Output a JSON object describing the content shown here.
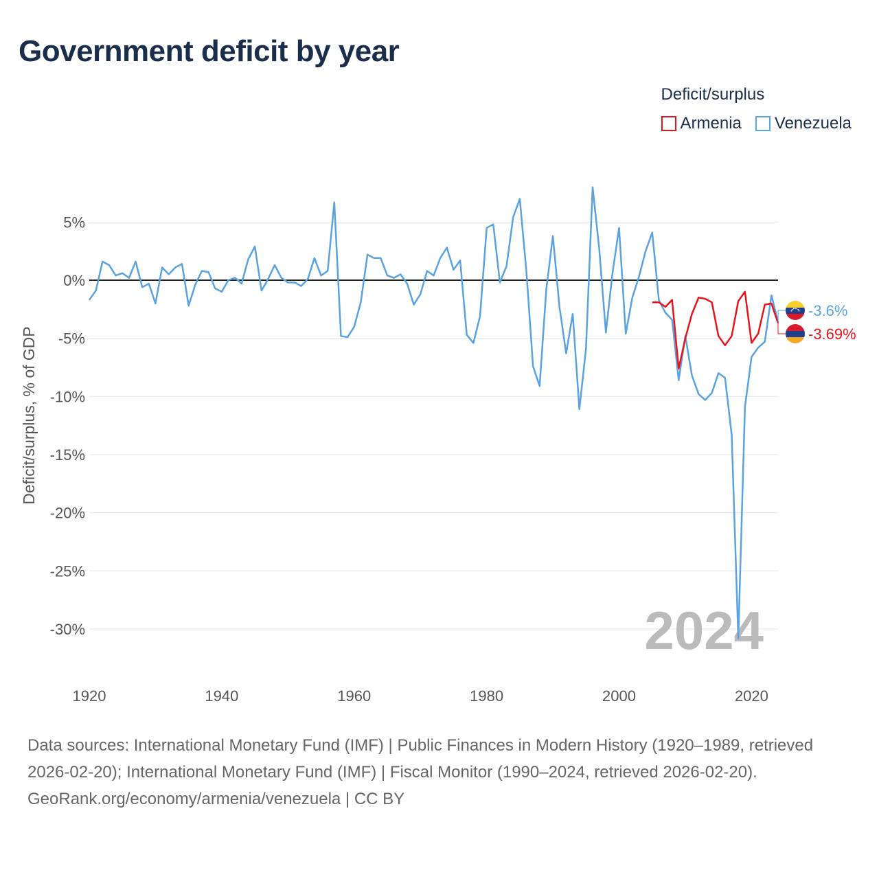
{
  "page": {
    "title": "Government deficit by year",
    "sources": "Data sources: International Monetary Fund (IMF) | Public Finances in Modern History (1920–1989, retrieved 2026-02-20); International Monetary Fund (IMF) | Fiscal Monitor (1990–2024, retrieved 2026-02-20).",
    "credit": "GeoRank.org/economy/armenia/venezuela | CC BY"
  },
  "legend": {
    "title": "Deficit/surplus",
    "items": [
      {
        "label": "Armenia",
        "color": "#e8141c"
      },
      {
        "label": "Venezuela",
        "color": "#5aa3e0"
      }
    ]
  },
  "chart_data": {
    "type": "line",
    "title": "Government deficit by year",
    "xlabel": "",
    "ylabel": "Deficit/surplus, % of GDP",
    "xlim": [
      1920,
      2024
    ],
    "ylim": [
      -33,
      10
    ],
    "x_ticks": [
      1920,
      1940,
      1960,
      1980,
      2000,
      2020
    ],
    "y_ticks": [
      {
        "value": 5,
        "label": "5%"
      },
      {
        "value": 0,
        "label": "0%"
      },
      {
        "value": -5,
        "label": "-5%"
      },
      {
        "value": -10,
        "label": "-10%"
      },
      {
        "value": -15,
        "label": "-15%"
      },
      {
        "value": -20,
        "label": "-20%"
      },
      {
        "value": -25,
        "label": "-25%"
      },
      {
        "value": -30,
        "label": "-30%"
      }
    ],
    "zero_line": true,
    "grid": true,
    "current_year": "2024",
    "series": [
      {
        "name": "Venezuela",
        "color": "#5aa3e0",
        "end_label": "-3.6%",
        "flag": "venezuela-flag",
        "x": [
          1920,
          1921,
          1922,
          1923,
          1924,
          1925,
          1926,
          1927,
          1928,
          1929,
          1930,
          1931,
          1932,
          1933,
          1934,
          1935,
          1936,
          1937,
          1938,
          1939,
          1940,
          1941,
          1942,
          1943,
          1944,
          1945,
          1946,
          1947,
          1948,
          1949,
          1950,
          1951,
          1952,
          1953,
          1954,
          1955,
          1956,
          1957,
          1958,
          1959,
          1960,
          1961,
          1962,
          1963,
          1964,
          1965,
          1966,
          1967,
          1968,
          1969,
          1970,
          1971,
          1972,
          1973,
          1974,
          1975,
          1976,
          1977,
          1978,
          1979,
          1980,
          1981,
          1982,
          1983,
          1984,
          1985,
          1986,
          1987,
          1988,
          1989,
          1990,
          1991,
          1992,
          1993,
          1994,
          1995,
          1996,
          1997,
          1998,
          1999,
          2000,
          2001,
          2002,
          2003,
          2004,
          2005,
          2006,
          2007,
          2008,
          2009,
          2010,
          2011,
          2012,
          2013,
          2014,
          2015,
          2016,
          2017,
          2018,
          2019,
          2020,
          2021,
          2022,
          2023,
          2024
        ],
        "values": [
          -1.7,
          -0.9,
          1.6,
          1.3,
          0.4,
          0.6,
          0.2,
          1.6,
          -0.6,
          -0.3,
          -2.0,
          1.1,
          0.5,
          1.1,
          1.4,
          -2.2,
          -0.4,
          0.8,
          0.7,
          -0.7,
          -1.0,
          0.0,
          0.2,
          -0.3,
          1.8,
          2.9,
          -0.9,
          0.1,
          1.3,
          0.2,
          -0.2,
          -0.2,
          -0.5,
          0.1,
          1.9,
          0.4,
          0.8,
          6.7,
          -4.8,
          -4.9,
          -4.0,
          -1.9,
          2.2,
          1.9,
          1.9,
          0.4,
          0.2,
          0.5,
          -0.3,
          -2.1,
          -1.2,
          0.8,
          0.4,
          1.9,
          2.8,
          0.9,
          1.7,
          -4.7,
          -5.4,
          -3.1,
          4.5,
          4.8,
          -0.2,
          1.2,
          5.4,
          7.0,
          0.8,
          -7.4,
          -9.1,
          -0.8,
          3.8,
          -2.3,
          -6.3,
          -2.9,
          -11.1,
          -5.9,
          8.0,
          2.7,
          -4.5,
          0.6,
          4.5,
          -4.6,
          -1.5,
          0.3,
          2.5,
          4.1,
          -1.7,
          -2.8,
          -3.4,
          -8.6,
          -4.8,
          -8.2,
          -9.8,
          -10.3,
          -9.7,
          -8.0,
          -8.4,
          -13.3,
          -30.8,
          -10.9,
          -6.6,
          -5.8,
          -5.3,
          -1.3,
          -3.6
        ]
      },
      {
        "name": "Armenia",
        "color": "#e8141c",
        "end_label": "-3.69%",
        "flag": "armenia-flag",
        "x": [
          2005,
          2006,
          2007,
          2008,
          2009,
          2010,
          2011,
          2012,
          2013,
          2014,
          2015,
          2016,
          2017,
          2018,
          2019,
          2020,
          2021,
          2022,
          2023,
          2024
        ],
        "values": [
          -1.9,
          -1.9,
          -2.3,
          -1.7,
          -7.6,
          -5.0,
          -2.9,
          -1.5,
          -1.6,
          -1.9,
          -4.8,
          -5.6,
          -4.8,
          -1.8,
          -1.0,
          -5.4,
          -4.6,
          -2.1,
          -2.0,
          -3.69
        ]
      }
    ]
  }
}
